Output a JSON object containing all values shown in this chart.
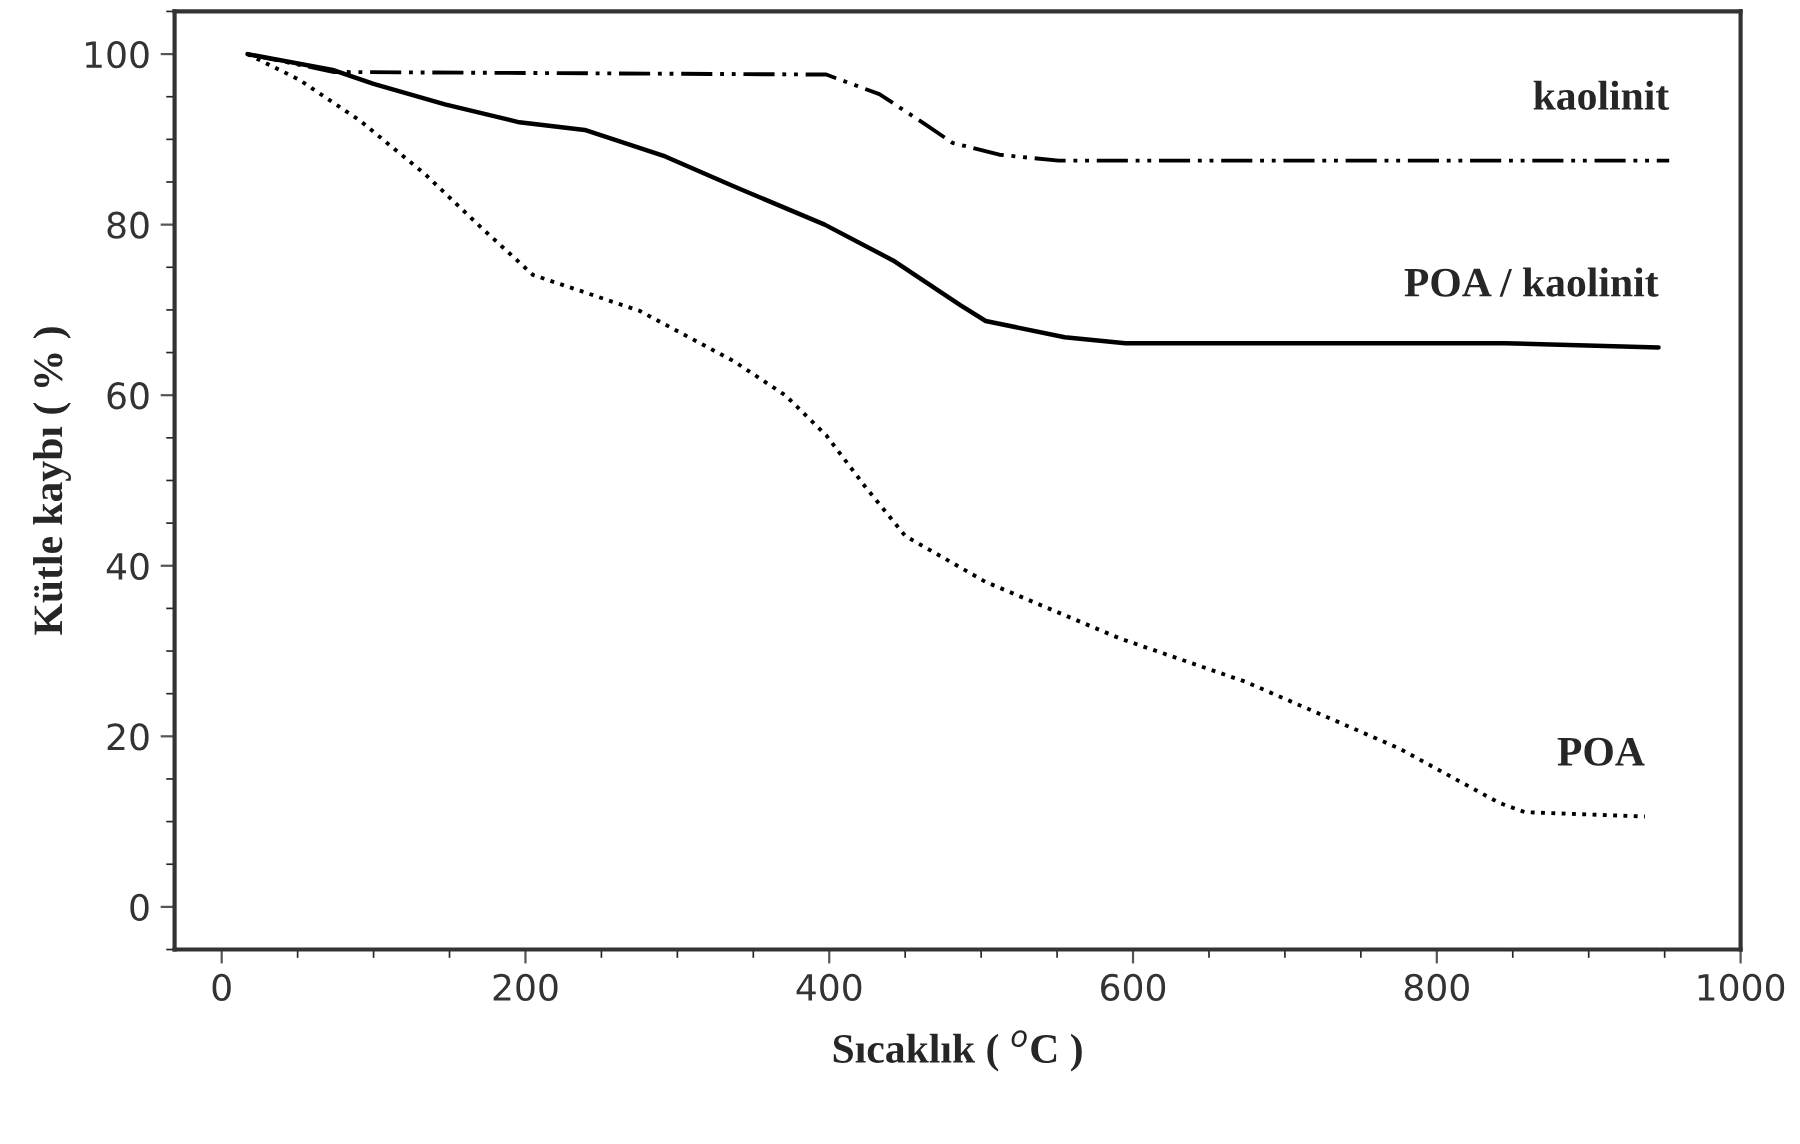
{
  "chart_data": {
    "type": "line",
    "xlabel": "Sıcaklık ( $^{o}$C )",
    "ylabel": "Kütle kaybı ( % )",
    "xlim": [
      -31,
      1000
    ],
    "ylim": [
      -5,
      105
    ],
    "xticks": [
      0,
      200,
      400,
      600,
      800,
      1000
    ],
    "yticks": [
      0,
      20,
      40,
      60,
      80,
      100
    ],
    "grid": false,
    "legend": false,
    "marker": "none",
    "series": [
      {
        "name": "kaolinit",
        "color": "#000000",
        "line_style": "dashdot",
        "x": [
          17,
          74,
          398,
          433,
          463,
          481,
          512,
          551,
          953
        ],
        "values": [
          100,
          97.9,
          97.6,
          95.3,
          91.8,
          89.6,
          88.2,
          87.5,
          87.5
        ]
      },
      {
        "name": "POA / kaolinit",
        "color": "#000000",
        "line_style": "solid",
        "x": [
          17,
          74,
          100,
          147,
          196,
          239,
          292,
          337,
          397,
          442,
          486,
          503,
          555,
          595,
          845,
          946
        ],
        "values": [
          100,
          98.1,
          96.5,
          94.1,
          92,
          91.1,
          88,
          84.5,
          80,
          75.8,
          70.6,
          68.7,
          66.8,
          66.1,
          66.1,
          65.6
        ]
      },
      {
        "name": "POA",
        "color": "#000000",
        "line_style": "dotted",
        "x": [
          17,
          51,
          91,
          134,
          170,
          205,
          275,
          337,
          371,
          398,
          424,
          450,
          503,
          591,
          674,
          775,
          841,
          858,
          937
        ],
        "values": [
          100,
          97,
          92.2,
          85.9,
          79.8,
          74.1,
          69.9,
          64,
          60,
          55.3,
          49.2,
          43.5,
          38.1,
          31.5,
          26.4,
          18.6,
          12.2,
          11.1,
          10.6
        ]
      }
    ]
  }
}
